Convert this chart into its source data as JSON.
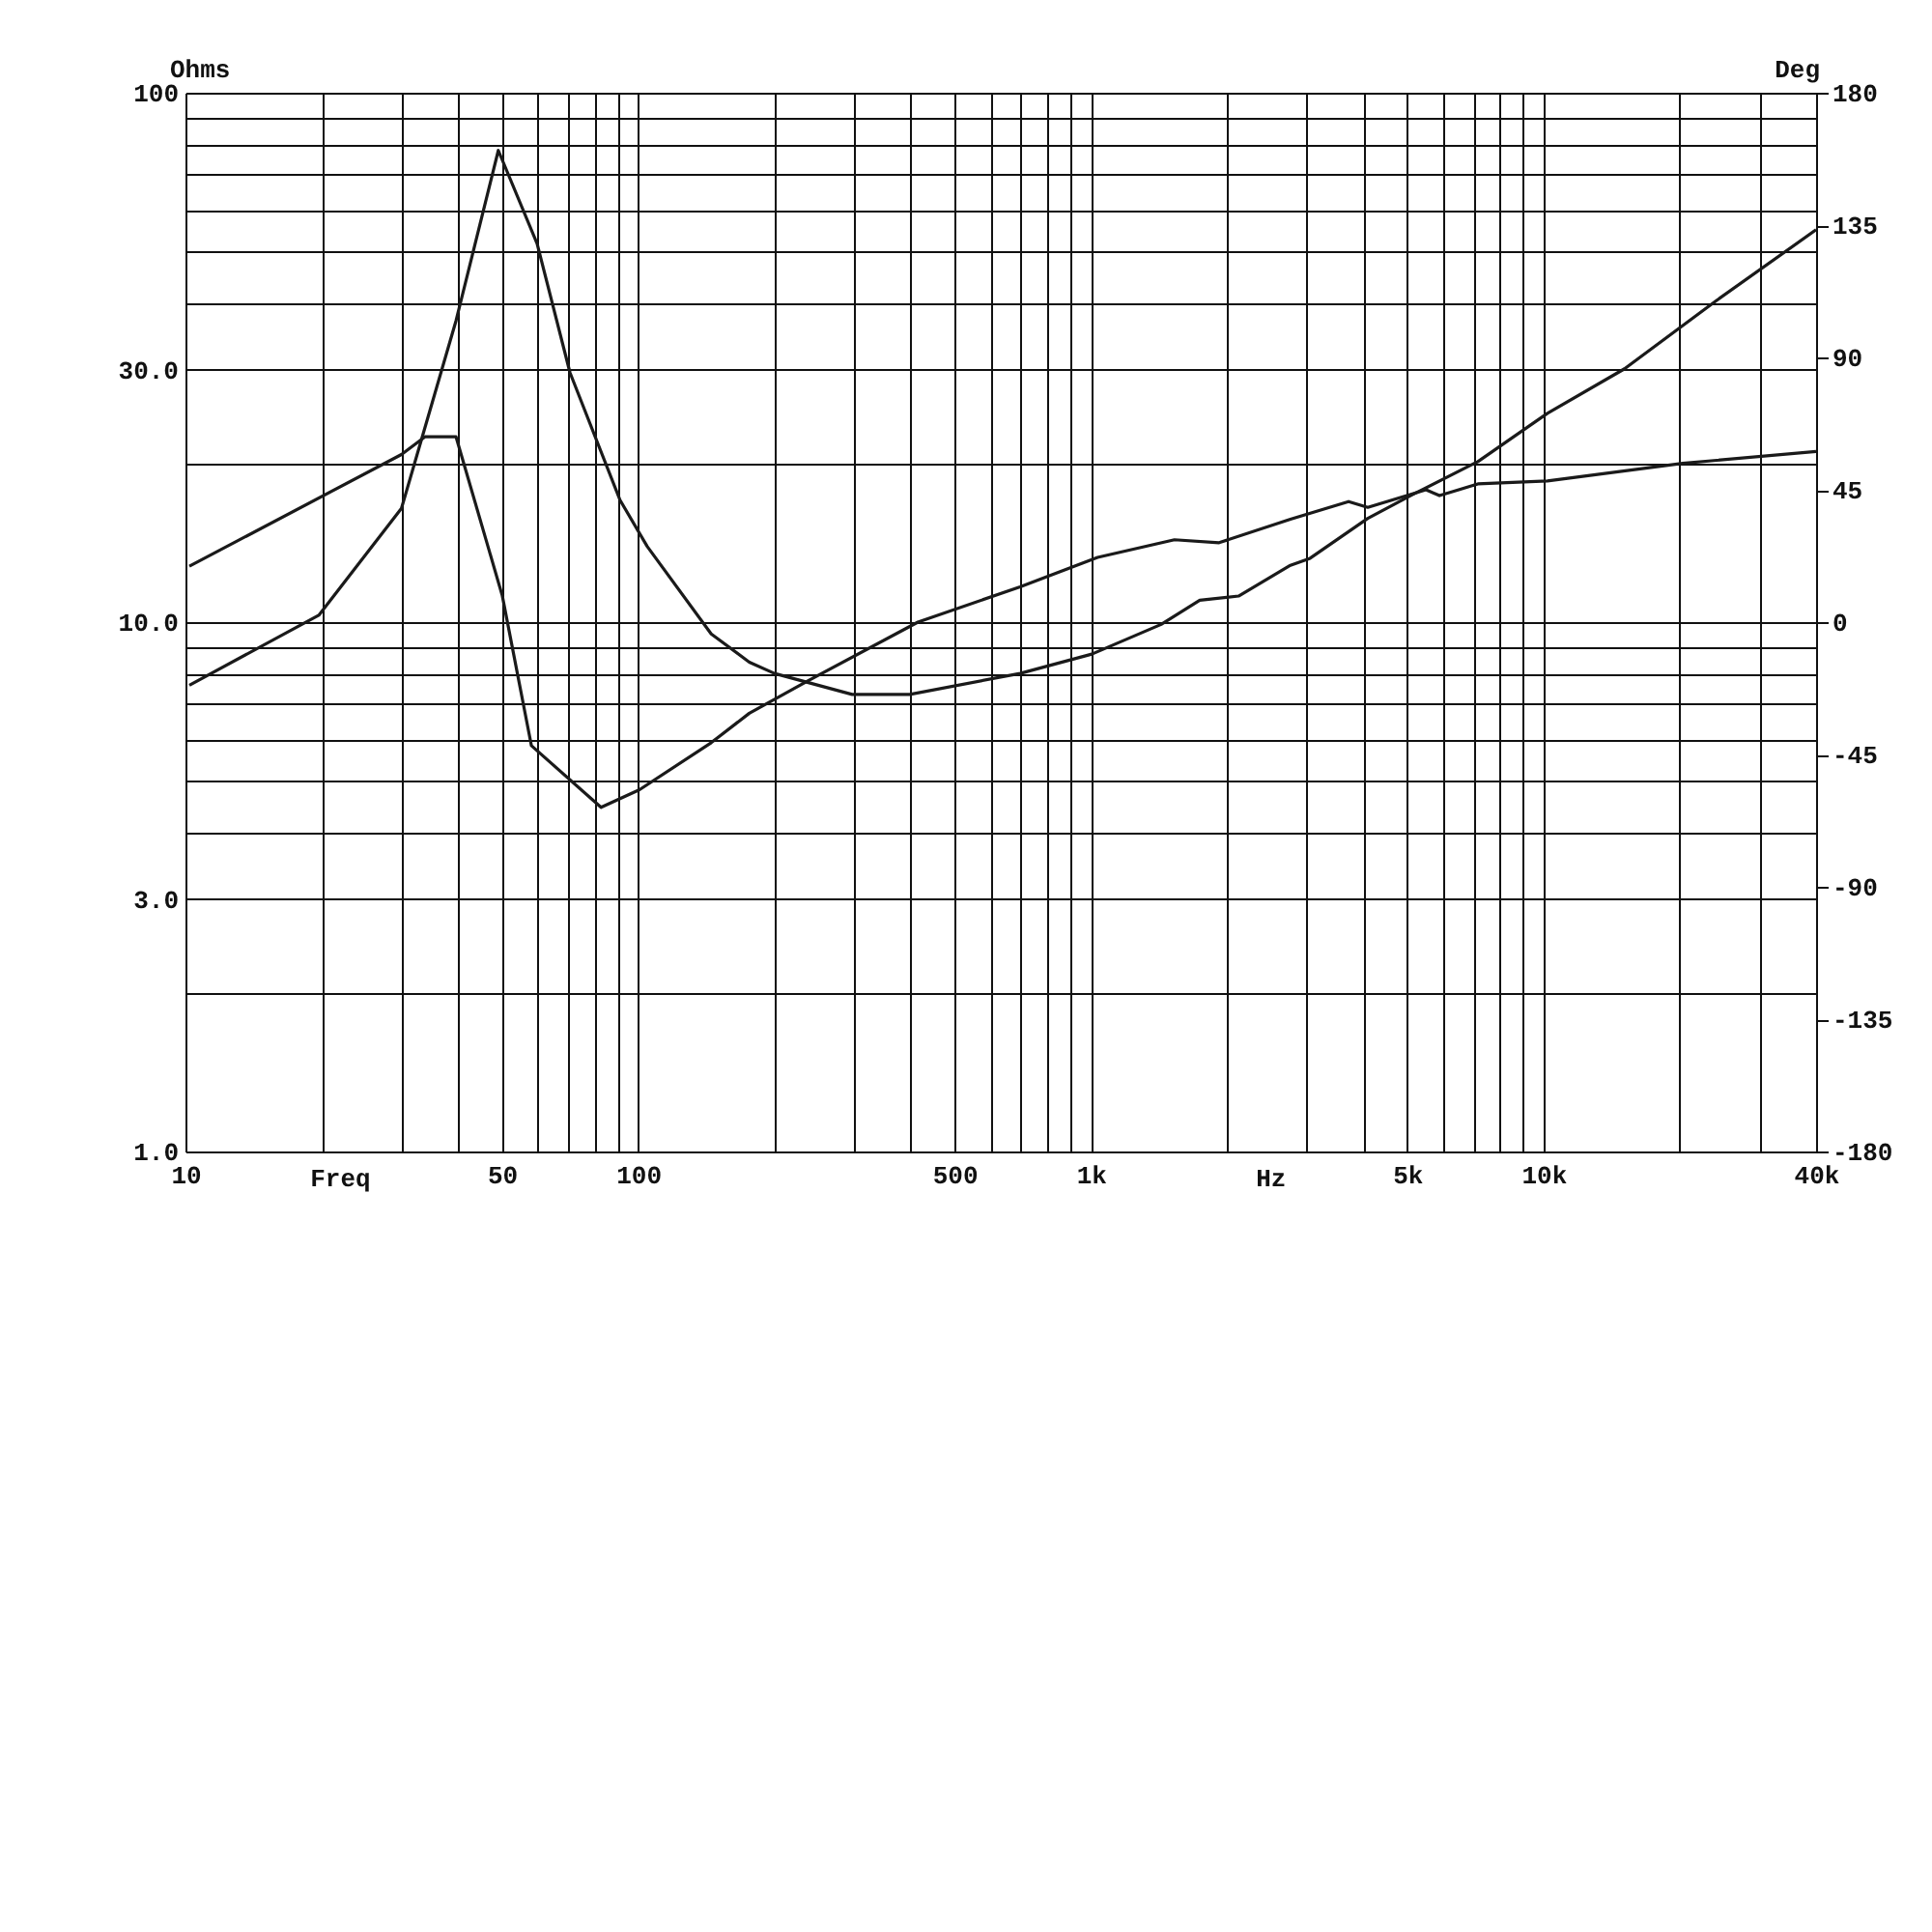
{
  "chart_data": {
    "type": "line",
    "xlabel": "Freq",
    "ylabel": "Ohms",
    "y2label": "Deg",
    "annotations": [
      "Hz"
    ],
    "log": "xy",
    "grid": true,
    "xlim": [
      10,
      40000
    ],
    "xticks": [
      10,
      {
        "value": 20,
        "label": null
      },
      {
        "value": 30,
        "label": null
      },
      {
        "value": 40,
        "label": null
      },
      {
        "value": 50,
        "label": "50"
      },
      {
        "value": 60,
        "label": null
      },
      {
        "value": 70,
        "label": null
      },
      {
        "value": 80,
        "label": null
      },
      {
        "value": 90,
        "label": null
      },
      100,
      {
        "value": 200,
        "label": null
      },
      {
        "value": 300,
        "label": null
      },
      {
        "value": 400,
        "label": null
      },
      500,
      {
        "value": 600,
        "label": null
      },
      {
        "value": 700,
        "label": null
      },
      {
        "value": 800,
        "label": null
      },
      {
        "value": 900,
        "label": null
      },
      {
        "value": 1000,
        "label": "1k"
      },
      {
        "value": 2000,
        "label": null
      },
      {
        "value": 3000,
        "label": null
      },
      {
        "value": 4000,
        "label": null
      },
      {
        "value": 5000,
        "label": "5k"
      },
      {
        "value": 6000,
        "label": null
      },
      {
        "value": 7000,
        "label": null
      },
      {
        "value": 8000,
        "label": null
      },
      {
        "value": 9000,
        "label": null
      },
      {
        "value": 10000,
        "label": "10k"
      },
      {
        "value": 20000,
        "label": null
      },
      {
        "value": 30000,
        "label": null
      },
      {
        "value": 40000,
        "label": "40k"
      }
    ],
    "ylim": [
      1,
      100
    ],
    "yticks": [
      {
        "value": 1,
        "label": "1.0"
      },
      {
        "value": 2,
        "label": null
      },
      {
        "value": 3,
        "label": "3.0"
      },
      {
        "value": 4,
        "label": null
      },
      {
        "value": 5,
        "label": null
      },
      {
        "value": 6,
        "label": null
      },
      {
        "value": 7,
        "label": null
      },
      {
        "value": 8,
        "label": null
      },
      {
        "value": 9,
        "label": null
      },
      {
        "value": 10,
        "label": "10.0"
      },
      {
        "value": 20,
        "label": null
      },
      {
        "value": 30,
        "label": "30.0"
      },
      {
        "value": 40,
        "label": null
      },
      {
        "value": 50,
        "label": null
      },
      {
        "value": 60,
        "label": null
      },
      {
        "value": 70,
        "label": null
      },
      {
        "value": 80,
        "label": null
      },
      {
        "value": 90,
        "label": null
      },
      100
    ],
    "y2lim": [
      -180,
      180
    ],
    "y2ticks": [
      -180,
      -135,
      -90,
      -45,
      0,
      45,
      90,
      135,
      180
    ],
    "series": [
      {
        "color": "#1a1a1a",
        "x": [
          10.2,
          19.7,
          30,
          39.6,
          49.1,
          59.8,
          70.7,
          91.2,
          104.7,
          145,
          176,
          200,
          297,
          398,
          698,
          1005,
          1430,
          1740,
          2120,
          2760,
          3050,
          4090,
          5130,
          7160,
          10200,
          15100,
          24000,
          40000
        ],
        "values": [
          7.6,
          10.3,
          16.4,
          37.1,
          77.8,
          51.9,
          29.6,
          17.0,
          13.9,
          9.5,
          8.4,
          8.0,
          7.3,
          7.3,
          8.0,
          8.7,
          9.9,
          11.0,
          11.2,
          12.8,
          13.2,
          15.7,
          17.4,
          20.1,
          24.8,
          30.1,
          40.4,
          55.1
        ]
      },
      {
        "color": "#1a1a1a",
        "axis": "y2",
        "x": [
          10.2,
          30,
          33.8,
          39.6,
          50.1,
          58.1,
          82.8,
          100.7,
          145,
          176,
          237,
          415,
          698,
          1035,
          1530,
          1920,
          2760,
          3710,
          4090,
          5500,
          5890,
          7160,
          10200,
          20300,
          40000
        ],
        "values": [
          19,
          57,
          63,
          63,
          9,
          -42,
          -63,
          -57,
          -41,
          -31,
          -20,
          0,
          12,
          22,
          28,
          27,
          35,
          41,
          39,
          45,
          43,
          47,
          48,
          54,
          58
        ]
      }
    ]
  }
}
